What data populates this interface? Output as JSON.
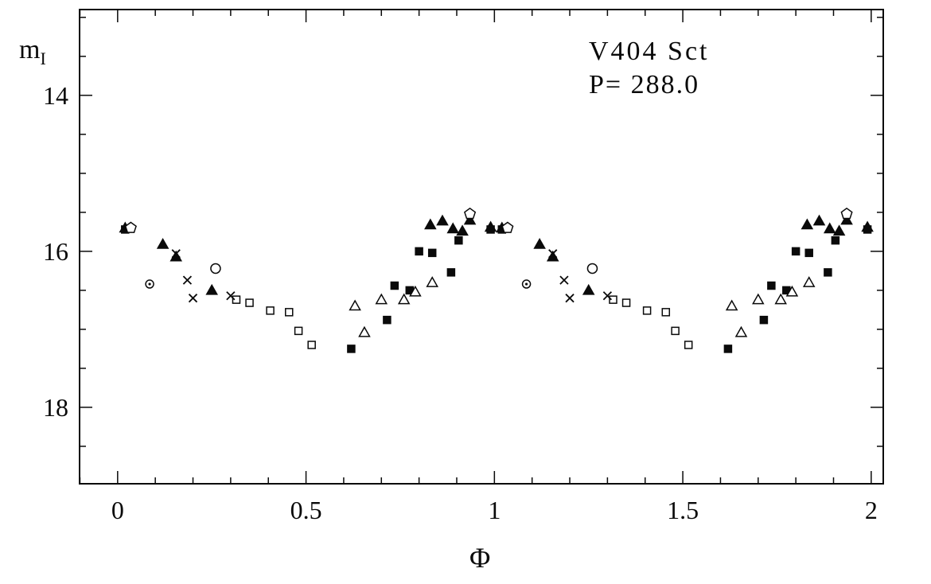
{
  "figure": {
    "background": "#ffffff",
    "foreground": "#0a0a0a",
    "star_name": "V404 Sct",
    "period_label": "P= 288.0",
    "y_axis_label_main": "m",
    "y_axis_label_sub": "I",
    "x_axis_label": "Φ"
  },
  "chart_data": {
    "type": "scatter",
    "title": "V404 Sct",
    "subtitle": "P= 288.0",
    "xlabel": "Φ",
    "ylabel": "m_I",
    "x_axis": {
      "min": -0.101,
      "max": 2.032,
      "major_ticks": [
        0,
        0.5,
        1,
        1.5,
        2
      ],
      "major_tick_labels": [
        "0",
        "0.5",
        "1",
        "1.5",
        "2"
      ],
      "minor_tick_step": 0.1
    },
    "y_axis": {
      "top": 12.9,
      "bottom": 18.98,
      "inverted": true,
      "major_ticks": [
        14,
        16,
        18
      ],
      "major_tick_labels": [
        "14",
        "16",
        "18"
      ],
      "minor_tick_step": 0.5
    },
    "grid": false,
    "legend": "none",
    "phase_duplicated": true,
    "series": [
      {
        "name": "filled-triangles",
        "marker": "triangle-filled",
        "points": [
          [
            0.02,
            15.7
          ],
          [
            0.12,
            15.91
          ],
          [
            0.155,
            16.07
          ],
          [
            0.25,
            16.5
          ],
          [
            0.83,
            15.66
          ],
          [
            0.862,
            15.61
          ],
          [
            0.89,
            15.71
          ],
          [
            0.915,
            15.74
          ],
          [
            0.935,
            15.6
          ],
          [
            0.99,
            15.69
          ]
        ]
      },
      {
        "name": "filled-squares",
        "marker": "square-filled",
        "points": [
          [
            0.02,
            15.72
          ],
          [
            0.62,
            17.25
          ],
          [
            0.715,
            16.88
          ],
          [
            0.735,
            16.44
          ],
          [
            0.775,
            16.5
          ],
          [
            0.8,
            16.0
          ],
          [
            0.835,
            16.02
          ],
          [
            0.885,
            16.27
          ],
          [
            0.905,
            15.86
          ],
          [
            0.99,
            15.72
          ]
        ]
      },
      {
        "name": "open-squares",
        "marker": "square-open",
        "points": [
          [
            0.315,
            16.62
          ],
          [
            0.35,
            16.66
          ],
          [
            0.405,
            16.76
          ],
          [
            0.455,
            16.78
          ],
          [
            0.48,
            17.02
          ],
          [
            0.515,
            17.2
          ]
        ]
      },
      {
        "name": "open-triangles",
        "marker": "triangle-open",
        "points": [
          [
            0.63,
            16.7
          ],
          [
            0.655,
            17.04
          ],
          [
            0.7,
            16.62
          ],
          [
            0.76,
            16.62
          ],
          [
            0.79,
            16.52
          ],
          [
            0.835,
            16.4
          ]
        ]
      },
      {
        "name": "crosses",
        "marker": "cross",
        "points": [
          [
            0.155,
            16.03
          ],
          [
            0.185,
            16.37
          ],
          [
            0.2,
            16.6
          ],
          [
            0.3,
            16.57
          ]
        ]
      },
      {
        "name": "open-circles",
        "marker": "circle-open",
        "points": [
          [
            0.26,
            16.22
          ]
        ]
      },
      {
        "name": "circled-dots",
        "marker": "circle-dot",
        "points": [
          [
            0.085,
            16.42
          ]
        ]
      },
      {
        "name": "open-pentagons",
        "marker": "pentagon-open",
        "points": [
          [
            0.035,
            15.7
          ],
          [
            0.935,
            15.52
          ]
        ]
      }
    ]
  }
}
